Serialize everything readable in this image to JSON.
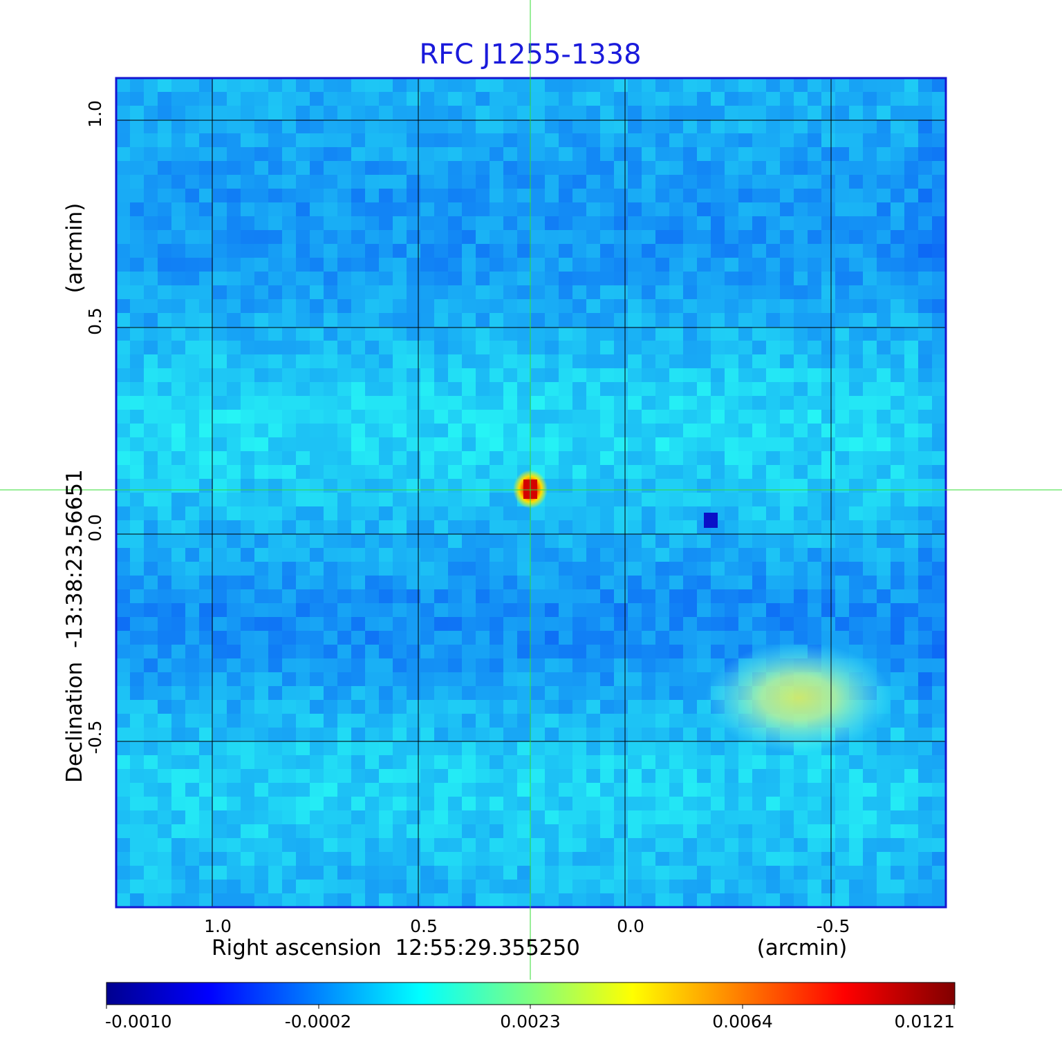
{
  "title": "RFC J1255-1338",
  "xaxis": {
    "label_left": "Right ascension  12:55:29.355250",
    "label_right": "(arcmin)",
    "ticks": [
      "1.0",
      "0.5",
      "0.0",
      "-0.5"
    ]
  },
  "yaxis": {
    "label_left": "Declination  -13:38:23.56651",
    "label_right": "(arcmin)",
    "ticks": [
      "1.0",
      "0.5",
      "0.0",
      "-0.5"
    ]
  },
  "colorbar": {
    "ticks": [
      "-0.0010",
      "-0.0002",
      "0.0023",
      "0.0064",
      "0.0121"
    ],
    "colormap": "jet"
  },
  "colors": {
    "title": "#1a1adb",
    "frame": "#1515d0",
    "crosshair": "#33dd33",
    "grid": "#000000"
  }
}
